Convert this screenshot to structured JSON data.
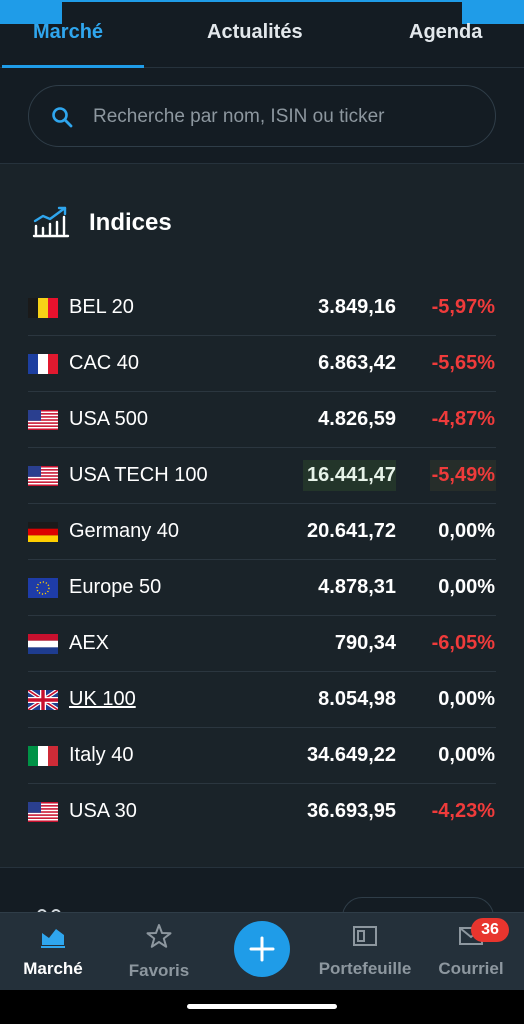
{
  "tabs": [
    {
      "label": "Marché",
      "active": true
    },
    {
      "label": "Actualités",
      "active": false
    },
    {
      "label": "Agenda",
      "active": false
    }
  ],
  "search": {
    "placeholder": "Recherche par nom, ISIN ou ticker",
    "icon": "search-icon"
  },
  "section": {
    "title": "Indices",
    "icon": "chart-line-icon"
  },
  "indices": [
    {
      "name": "BEL 20",
      "flag": "belgium",
      "price": "3.849,16",
      "change": "-5,97%",
      "direction": "down"
    },
    {
      "name": "CAC 40",
      "flag": "france",
      "price": "6.863,42",
      "change": "-5,65%",
      "direction": "down"
    },
    {
      "name": "USA 500",
      "flag": "usa",
      "price": "4.826,59",
      "change": "-4,87%",
      "direction": "down"
    },
    {
      "name": "USA TECH 100",
      "flag": "usa",
      "price": "16.441,47",
      "change": "-5,49%",
      "direction": "down",
      "highlighted": true
    },
    {
      "name": "Germany 40",
      "flag": "germany",
      "price": "20.641,72",
      "change": "0,00%",
      "direction": "flat"
    },
    {
      "name": "Europe 50",
      "flag": "eu",
      "price": "4.878,31",
      "change": "0,00%",
      "direction": "flat"
    },
    {
      "name": "AEX",
      "flag": "netherlands",
      "price": "790,34",
      "change": "-6,05%",
      "direction": "down"
    },
    {
      "name": "UK 100",
      "flag": "uk",
      "price": "8.054,98",
      "change": "0,00%",
      "direction": "flat",
      "underlined": true
    },
    {
      "name": "Italy 40",
      "flag": "italy",
      "price": "34.649,22",
      "change": "0,00%",
      "direction": "flat"
    },
    {
      "name": "USA 30",
      "flag": "usa",
      "price": "36.693,95",
      "change": "-4,23%",
      "direction": "down"
    }
  ],
  "bottom_nav": {
    "items": [
      {
        "label": "Marché",
        "icon": "market-chart-icon",
        "active": true
      },
      {
        "label": "Favoris",
        "icon": "star-icon",
        "active": false
      },
      {
        "label": "Portefeuille",
        "icon": "wallet-icon",
        "active": false
      },
      {
        "label": "Courriel",
        "icon": "mail-icon",
        "active": false
      }
    ],
    "fab_icon": "plus-icon",
    "mail_badge": "36"
  },
  "colors": {
    "accent": "#1f9ce8",
    "negative": "#ef3b3b",
    "background": "#141c23",
    "card": "#1a2329",
    "badge": "#e8352e"
  }
}
